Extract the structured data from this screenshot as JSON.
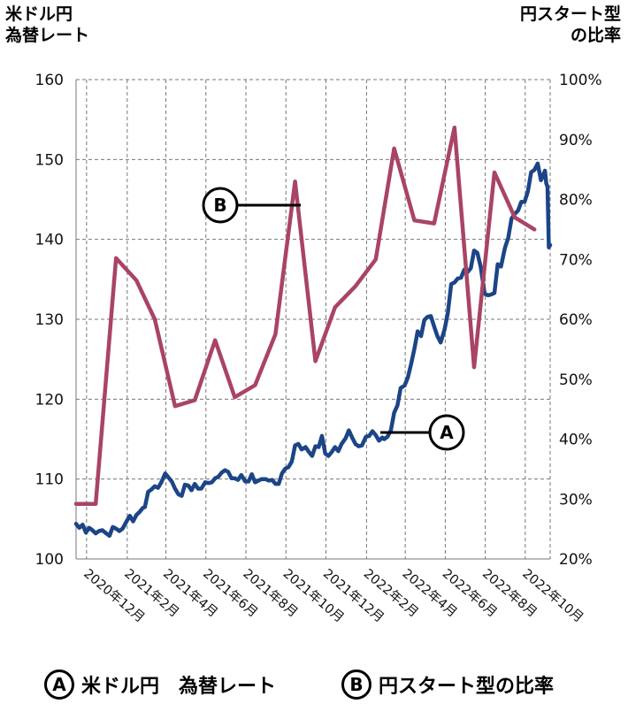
{
  "left_axis_title": [
    "米ドル円",
    "為替レート"
  ],
  "right_axis_title": [
    "円スタート型",
    "の比率"
  ],
  "legend": {
    "a_badge": "A",
    "a_label": "米ドル円　為替レート",
    "b_badge": "B",
    "b_label": "円スタート型の比率"
  },
  "callouts": {
    "a": "A",
    "b": "B"
  },
  "colors": {
    "usd_jpy": "#1c4587",
    "ratio": "#a94464",
    "grid": "#777777"
  },
  "chart_data": {
    "type": "line",
    "x_range": [
      "2020-11-15",
      "2022-11-08"
    ],
    "x_ticks": [
      "2020年12月",
      "2021年2月",
      "2021年4月",
      "2021年6月",
      "2021年8月",
      "2021年10月",
      "2021年12月",
      "2022年2月",
      "2022年4月",
      "2022年6月",
      "2022年8月",
      "2022年10月"
    ],
    "x_tick_dates": [
      "2020-12-01",
      "2021-02-01",
      "2021-04-01",
      "2021-06-01",
      "2021-08-01",
      "2021-10-01",
      "2021-12-01",
      "2022-02-01",
      "2022-04-01",
      "2022-06-01",
      "2022-08-01",
      "2022-10-01"
    ],
    "y_left": {
      "range": [
        100,
        160
      ],
      "ticks": [
        100,
        110,
        120,
        130,
        140,
        150,
        160
      ]
    },
    "y_right": {
      "range": [
        20,
        100
      ],
      "ticks": [
        "20%",
        "30%",
        "40%",
        "50%",
        "60%",
        "70%",
        "80%",
        "90%",
        "100%"
      ],
      "tick_values": [
        20,
        30,
        40,
        50,
        60,
        70,
        80,
        90,
        100
      ]
    },
    "grid": true,
    "series": [
      {
        "name": "米ドル円　為替レート",
        "axis": "left",
        "color": "#1c4587",
        "points": [
          [
            "2020-11-15",
            104.4
          ],
          [
            "2020-11-20",
            103.9
          ],
          [
            "2020-11-25",
            104.3
          ],
          [
            "2020-11-30",
            103.3
          ],
          [
            "2020-12-05",
            103.9
          ],
          [
            "2020-12-10",
            103.6
          ],
          [
            "2020-12-15",
            103.2
          ],
          [
            "2020-12-20",
            103.5
          ],
          [
            "2020-12-25",
            103.6
          ],
          [
            "2020-12-31",
            103.2
          ],
          [
            "2021-01-05",
            102.9
          ],
          [
            "2021-01-10",
            104.0
          ],
          [
            "2021-01-15",
            103.8
          ],
          [
            "2021-01-20",
            103.5
          ],
          [
            "2021-01-25",
            103.8
          ],
          [
            "2021-01-31",
            104.7
          ],
          [
            "2021-02-05",
            105.4
          ],
          [
            "2021-02-10",
            104.7
          ],
          [
            "2021-02-15",
            105.5
          ],
          [
            "2021-02-20",
            105.9
          ],
          [
            "2021-02-25",
            106.4
          ],
          [
            "2021-02-28",
            106.5
          ],
          [
            "2021-03-05",
            108.4
          ],
          [
            "2021-03-10",
            108.7
          ],
          [
            "2021-03-15",
            109.1
          ],
          [
            "2021-03-20",
            108.9
          ],
          [
            "2021-03-25",
            109.6
          ],
          [
            "2021-03-31",
            110.7
          ],
          [
            "2021-04-05",
            110.2
          ],
          [
            "2021-04-10",
            109.7
          ],
          [
            "2021-04-15",
            108.8
          ],
          [
            "2021-04-20",
            108.1
          ],
          [
            "2021-04-25",
            107.9
          ],
          [
            "2021-04-30",
            109.3
          ],
          [
            "2021-05-05",
            109.2
          ],
          [
            "2021-05-10",
            108.6
          ],
          [
            "2021-05-15",
            109.4
          ],
          [
            "2021-05-20",
            108.8
          ],
          [
            "2021-05-25",
            108.8
          ],
          [
            "2021-05-31",
            109.6
          ],
          [
            "2021-06-05",
            109.5
          ],
          [
            "2021-06-10",
            109.6
          ],
          [
            "2021-06-15",
            110.1
          ],
          [
            "2021-06-20",
            110.3
          ],
          [
            "2021-06-25",
            110.8
          ],
          [
            "2021-06-30",
            111.1
          ],
          [
            "2021-07-05",
            110.9
          ],
          [
            "2021-07-10",
            110.1
          ],
          [
            "2021-07-15",
            110.1
          ],
          [
            "2021-07-20",
            109.9
          ],
          [
            "2021-07-25",
            110.5
          ],
          [
            "2021-07-31",
            109.7
          ],
          [
            "2021-08-05",
            109.7
          ],
          [
            "2021-08-10",
            110.6
          ],
          [
            "2021-08-15",
            109.6
          ],
          [
            "2021-08-20",
            109.8
          ],
          [
            "2021-08-25",
            110.0
          ],
          [
            "2021-08-31",
            110.0
          ],
          [
            "2021-09-05",
            109.8
          ],
          [
            "2021-09-10",
            109.9
          ],
          [
            "2021-09-15",
            109.4
          ],
          [
            "2021-09-20",
            109.4
          ],
          [
            "2021-09-25",
            110.7
          ],
          [
            "2021-09-30",
            111.3
          ],
          [
            "2021-10-05",
            111.5
          ],
          [
            "2021-10-10",
            112.2
          ],
          [
            "2021-10-15",
            114.2
          ],
          [
            "2021-10-20",
            114.4
          ],
          [
            "2021-10-25",
            113.7
          ],
          [
            "2021-10-31",
            114.0
          ],
          [
            "2021-11-05",
            113.4
          ],
          [
            "2021-11-10",
            112.9
          ],
          [
            "2021-11-15",
            114.1
          ],
          [
            "2021-11-20",
            114.0
          ],
          [
            "2021-11-25",
            115.4
          ],
          [
            "2021-11-30",
            113.2
          ],
          [
            "2021-12-05",
            112.9
          ],
          [
            "2021-12-10",
            113.4
          ],
          [
            "2021-12-15",
            114.0
          ],
          [
            "2021-12-20",
            113.5
          ],
          [
            "2021-12-25",
            114.4
          ],
          [
            "2021-12-31",
            115.1
          ],
          [
            "2022-01-05",
            116.1
          ],
          [
            "2022-01-10",
            115.2
          ],
          [
            "2022-01-15",
            114.4
          ],
          [
            "2022-01-20",
            114.1
          ],
          [
            "2022-01-25",
            114.2
          ],
          [
            "2022-01-31",
            115.3
          ],
          [
            "2022-02-05",
            115.4
          ],
          [
            "2022-02-10",
            116.0
          ],
          [
            "2022-02-15",
            115.5
          ],
          [
            "2022-02-20",
            114.8
          ],
          [
            "2022-02-25",
            115.2
          ],
          [
            "2022-02-28",
            115.0
          ],
          [
            "2022-03-05",
            115.3
          ],
          [
            "2022-03-10",
            116.1
          ],
          [
            "2022-03-15",
            118.3
          ],
          [
            "2022-03-20",
            119.2
          ],
          [
            "2022-03-25",
            121.4
          ],
          [
            "2022-03-31",
            121.7
          ],
          [
            "2022-04-05",
            122.7
          ],
          [
            "2022-04-10",
            124.4
          ],
          [
            "2022-04-15",
            126.3
          ],
          [
            "2022-04-20",
            128.5
          ],
          [
            "2022-04-25",
            127.9
          ],
          [
            "2022-04-30",
            129.9
          ],
          [
            "2022-05-05",
            130.3
          ],
          [
            "2022-05-10",
            130.4
          ],
          [
            "2022-05-15",
            129.1
          ],
          [
            "2022-05-20",
            127.9
          ],
          [
            "2022-05-25",
            127.1
          ],
          [
            "2022-05-31",
            128.7
          ],
          [
            "2022-06-05",
            130.8
          ],
          [
            "2022-06-10",
            134.4
          ],
          [
            "2022-06-15",
            134.6
          ],
          [
            "2022-06-20",
            135.1
          ],
          [
            "2022-06-25",
            135.2
          ],
          [
            "2022-06-30",
            136.2
          ],
          [
            "2022-07-05",
            135.9
          ],
          [
            "2022-07-10",
            136.4
          ],
          [
            "2022-07-15",
            138.6
          ],
          [
            "2022-07-20",
            138.3
          ],
          [
            "2022-07-25",
            136.6
          ],
          [
            "2022-07-31",
            133.2
          ],
          [
            "2022-08-05",
            133.0
          ],
          [
            "2022-08-10",
            133.1
          ],
          [
            "2022-08-15",
            133.3
          ],
          [
            "2022-08-20",
            136.9
          ],
          [
            "2022-08-25",
            136.6
          ],
          [
            "2022-08-31",
            138.9
          ],
          [
            "2022-09-05",
            140.2
          ],
          [
            "2022-09-10",
            142.6
          ],
          [
            "2022-09-15",
            143.2
          ],
          [
            "2022-09-20",
            143.6
          ],
          [
            "2022-09-25",
            144.7
          ],
          [
            "2022-09-30",
            144.7
          ],
          [
            "2022-10-05",
            146.0
          ],
          [
            "2022-10-10",
            148.4
          ],
          [
            "2022-10-15",
            148.7
          ],
          [
            "2022-10-20",
            149.5
          ],
          [
            "2022-10-25",
            147.4
          ],
          [
            "2022-10-31",
            148.6
          ],
          [
            "2022-11-02",
            147.0
          ],
          [
            "2022-11-04",
            146.6
          ],
          [
            "2022-11-06",
            139.0
          ],
          [
            "2022-11-08",
            139.3
          ]
        ]
      },
      {
        "name": "円スタート型の比率",
        "axis": "right",
        "color": "#a94464",
        "points": [
          [
            "2020-11-15",
            29.2
          ],
          [
            "2020-12-15",
            29.2
          ],
          [
            "2021-01-15",
            70.2
          ],
          [
            "2021-02-15",
            66.5
          ],
          [
            "2021-03-15",
            60.0
          ],
          [
            "2021-04-15",
            45.5
          ],
          [
            "2021-05-15",
            46.5
          ],
          [
            "2021-06-15",
            56.5
          ],
          [
            "2021-07-15",
            47.0
          ],
          [
            "2021-08-15",
            49.0
          ],
          [
            "2021-09-15",
            57.5
          ],
          [
            "2021-10-15",
            83.0
          ],
          [
            "2021-11-15",
            53.0
          ],
          [
            "2021-12-15",
            62.0
          ],
          [
            "2022-01-15",
            65.5
          ],
          [
            "2022-02-15",
            70.0
          ],
          [
            "2022-03-15",
            88.5
          ],
          [
            "2022-04-15",
            76.5
          ],
          [
            "2022-05-15",
            76.0
          ],
          [
            "2022-06-15",
            92.0
          ],
          [
            "2022-07-15",
            52.0
          ],
          [
            "2022-08-15",
            84.5
          ],
          [
            "2022-09-15",
            77.0
          ],
          [
            "2022-10-15",
            75.0
          ]
        ]
      }
    ]
  }
}
